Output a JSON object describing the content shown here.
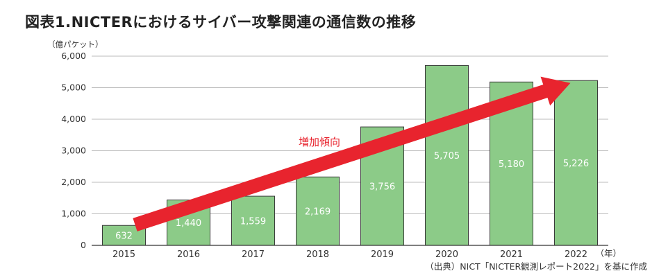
{
  "title": "図表1.NICTERにおけるサイバー攻撃関連の通信数の推移",
  "source": "（出典）NICT「NICTER観測レポート2022」を基に作成",
  "chart_data": {
    "type": "bar",
    "title": "図表1.NICTERにおけるサイバー攻撃関連の通信数の推移",
    "ylabel": "（億パケット）",
    "xlabel": "（年）",
    "categories": [
      "2015",
      "2016",
      "2017",
      "2018",
      "2019",
      "2020",
      "2021",
      "2022"
    ],
    "values": [
      632,
      1440,
      1559,
      2169,
      3756,
      5705,
      5180,
      5226
    ],
    "value_labels": [
      "632",
      "1,440",
      "1,559",
      "2,169",
      "3,756",
      "5,705",
      "5,180",
      "5,226"
    ],
    "ylim": [
      0,
      6000
    ],
    "yticks": [
      0,
      1000,
      2000,
      3000,
      4000,
      5000,
      6000
    ],
    "ytick_labels": [
      "0",
      "1,000",
      "2,000",
      "3,000",
      "4,000",
      "5,000",
      "6,000"
    ],
    "grid": true,
    "annotation": {
      "text": "増加傾向",
      "arrow_from": {
        "category": "2015",
        "value": 650
      },
      "arrow_to": {
        "category": "2022",
        "value": 5150
      }
    },
    "colors": {
      "bar": "#8ccb88",
      "bar_edge": "#3a3a3a",
      "arrow": "#e8242e",
      "annotation_text": "#e8242e",
      "grid": "#bbbbbb"
    }
  }
}
